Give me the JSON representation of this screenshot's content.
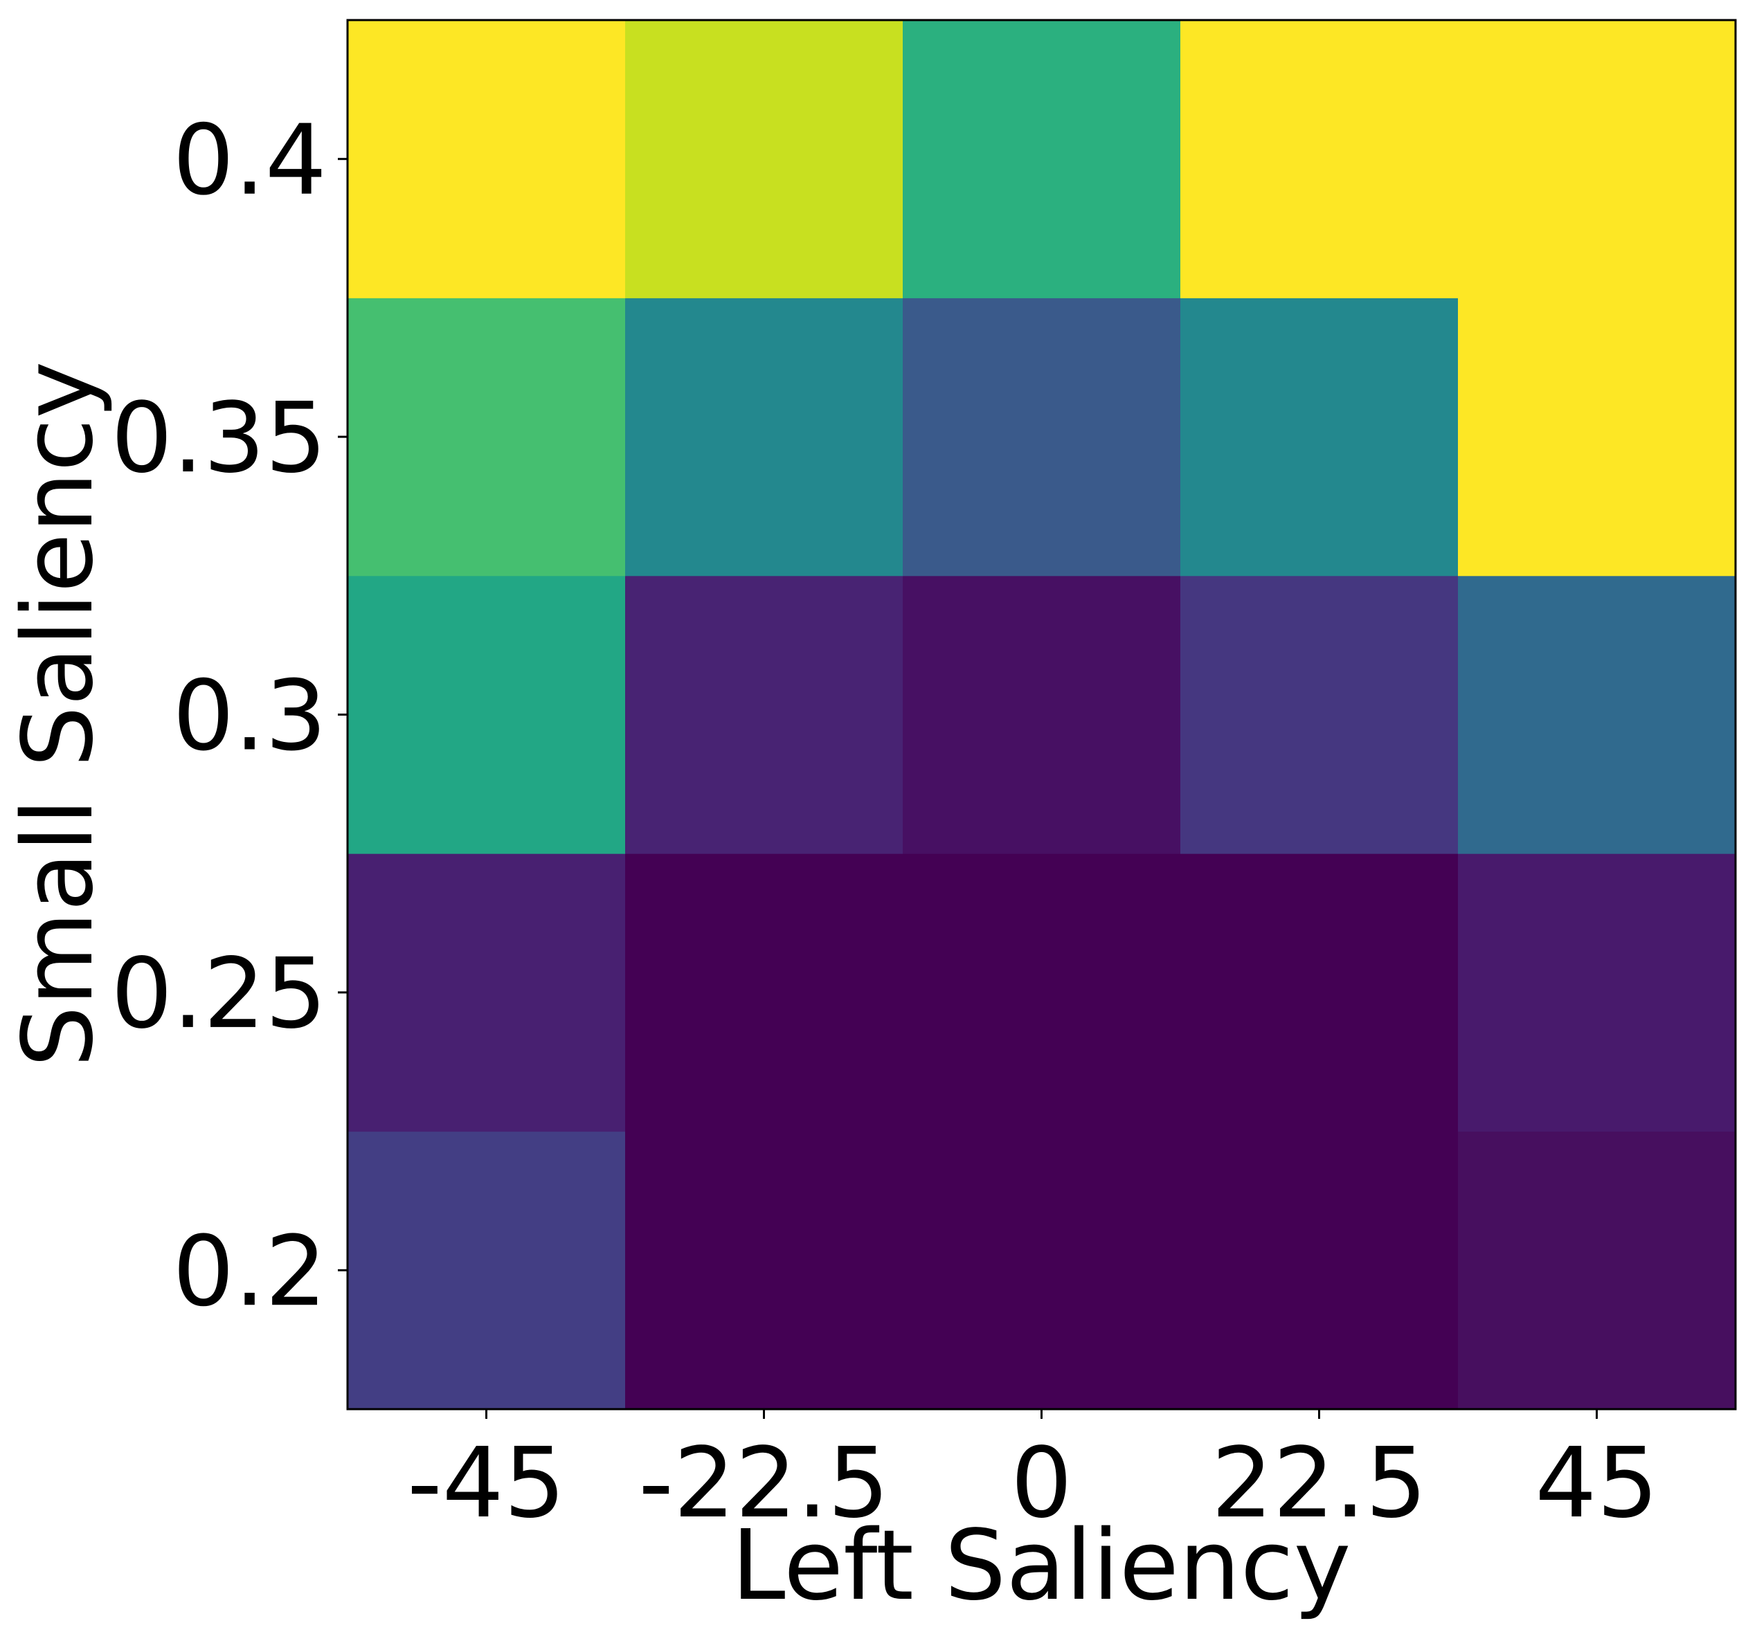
{
  "chart_data": {
    "type": "heatmap",
    "title": "",
    "xlabel": "Left Saliency",
    "ylabel": "Small Saliency",
    "x": [
      "-45",
      "-22.5",
      "0",
      "22.5",
      "45"
    ],
    "y": [
      "0.2",
      "0.25",
      "0.3",
      "0.35",
      "0.4"
    ],
    "colormap": "viridis",
    "grid": false,
    "legend": "none",
    "values": [
      [
        0.15,
        0.0,
        0.0,
        0.0,
        0.03
      ],
      [
        0.07,
        0.0,
        0.0,
        0.0,
        0.05
      ],
      [
        0.58,
        0.08,
        0.05,
        0.12,
        0.34
      ],
      [
        0.67,
        0.46,
        0.3,
        0.46,
        0.99
      ],
      [
        0.99,
        0.9,
        0.6,
        0.99,
        0.99
      ]
    ],
    "cell_colors": [
      [
        "#433E84",
        "#440154",
        "#440154",
        "#440154",
        "#470F5F"
      ],
      [
        "#482071",
        "#440154",
        "#440154",
        "#440154",
        "#481A6C"
      ],
      [
        "#22A785",
        "#482373",
        "#471063",
        "#453780",
        "#306A8E"
      ],
      [
        "#45BF70",
        "#23888E",
        "#3A5A8B",
        "#23888E",
        "#FDE725"
      ],
      [
        "#FDE725",
        "#C8E020",
        "#2BB07F",
        "#FDE725",
        "#FDE725"
      ]
    ]
  }
}
